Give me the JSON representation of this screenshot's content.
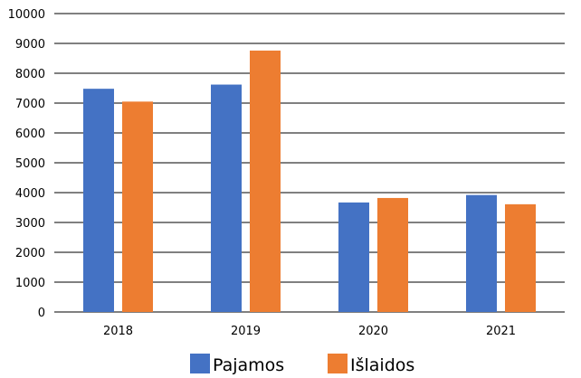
{
  "chart_data": {
    "type": "bar",
    "categories": [
      "2018",
      "2019",
      "2020",
      "2021"
    ],
    "series": [
      {
        "name": "Pajamos",
        "values": [
          7480,
          7620,
          3670,
          3920
        ],
        "color": "#4472C4"
      },
      {
        "name": "Išlaidos",
        "values": [
          7050,
          8760,
          3820,
          3610
        ],
        "color": "#ED7D31"
      }
    ],
    "title": "",
    "xlabel": "",
    "ylabel": "",
    "ylim": [
      0,
      10000
    ],
    "yticks": [
      "0",
      "1000",
      "2000",
      "3000",
      "4000",
      "5000",
      "6000",
      "7000",
      "8000",
      "9000",
      "10000"
    ],
    "grid": true,
    "legend_position": "bottom"
  }
}
